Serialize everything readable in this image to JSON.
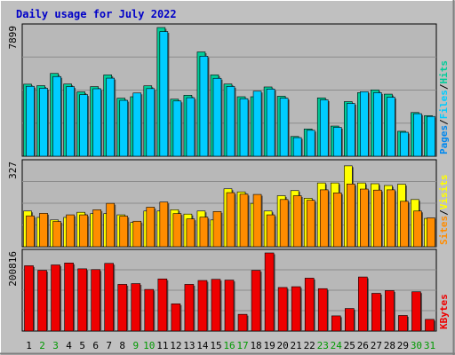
{
  "colors": {
    "background": "#c0c0c0",
    "plot_bg": "#b8b8b8",
    "grid": "#8c8c8c",
    "title": "#0000c8",
    "hits": "#00cc99",
    "files": "#00ccff",
    "pages": "#0088ee",
    "visits": "#ffff00",
    "sites": "#ff8c00",
    "kbytes": "#ee0000",
    "weekday_label": "#000000",
    "weekend_label": "#009900"
  },
  "chart_data": {
    "type": "bar",
    "title": "Daily usage for July 2022",
    "x": [
      "1",
      "2",
      "3",
      "4",
      "5",
      "6",
      "7",
      "8",
      "9",
      "10",
      "11",
      "12",
      "13",
      "14",
      "15",
      "16",
      "17",
      "18",
      "19",
      "20",
      "21",
      "22",
      "23",
      "24",
      "25",
      "26",
      "27",
      "28",
      "29",
      "30",
      "31"
    ],
    "weekend_days": [
      "2",
      "3",
      "9",
      "10",
      "16",
      "17",
      "23",
      "24",
      "30",
      "31"
    ],
    "grid": true,
    "panels": [
      {
        "name": "hits_files_pages",
        "ymax_label": "7899",
        "ylim": [
          0,
          7899
        ],
        "legend": [
          "Pages",
          "/",
          "Files",
          "/",
          "Hits"
        ],
        "legend_placement": "right",
        "series": [
          {
            "name": "Hits",
            "values": [
              4420,
              4330,
              5080,
              4430,
              3950,
              4270,
              4990,
              3560,
              3650,
              4320,
              7899,
              3500,
              3740,
              6400,
              4990,
              4430,
              3650,
              3650,
              4250,
              3680,
              1210,
              1670,
              3580,
              1850,
              3350,
              3900,
              4070,
              3810,
              1530,
              2680,
              2490
            ]
          },
          {
            "name": "Files",
            "values": [
              4290,
              4170,
              4890,
              4270,
              3780,
              4140,
              4790,
              3430,
              3880,
              4150,
              7650,
              3390,
              3590,
              6140,
              4780,
              4280,
              3530,
              3990,
              4120,
              3560,
              1140,
              1590,
              3460,
              1770,
              3240,
              3960,
              3900,
              3620,
              1470,
              2610,
              2440
            ]
          }
        ]
      },
      {
        "name": "visits_sites",
        "ymax_label": "327",
        "ylim": [
          0,
          327
        ],
        "legend": [
          "Sites",
          "/",
          "Visits"
        ],
        "legend_placement": "right",
        "series": [
          {
            "name": "Visits",
            "values": [
              140,
              115,
              105,
              115,
              135,
              130,
              130,
              125,
              95,
              140,
              140,
              145,
              128,
              140,
              105,
              227,
              215,
              170,
              140,
              200,
              220,
              190,
              250,
              250,
              317,
              250,
              247,
              240,
              245,
              185,
              111
            ]
          },
          {
            "name": "Sites",
            "values": [
              121,
              131,
              99,
              125,
              125,
              145,
              170,
              120,
              100,
              155,
              175,
              130,
              109,
              116,
              138,
              212,
              206,
              205,
              125,
              185,
              200,
              182,
              223,
              211,
              246,
              226,
              222,
              223,
              178,
              140,
              113
            ]
          }
        ]
      },
      {
        "name": "kbytes",
        "ymax_label": "200816",
        "ylim": [
          0,
          200816
        ],
        "legend": [
          "KBytes"
        ],
        "legend_placement": "right",
        "series": [
          {
            "name": "KBytes",
            "values": [
              168000,
              156000,
              170000,
              175000,
              160000,
              158000,
              174000,
              120000,
              122000,
              107000,
              134000,
              70000,
              120000,
              130000,
              133000,
              131000,
              43000,
              156000,
              200816,
              112000,
              114000,
              136000,
              109000,
              39000,
              58000,
              139000,
              97000,
              104000,
              40000,
              101000,
              30000
            ]
          }
        ]
      }
    ]
  }
}
